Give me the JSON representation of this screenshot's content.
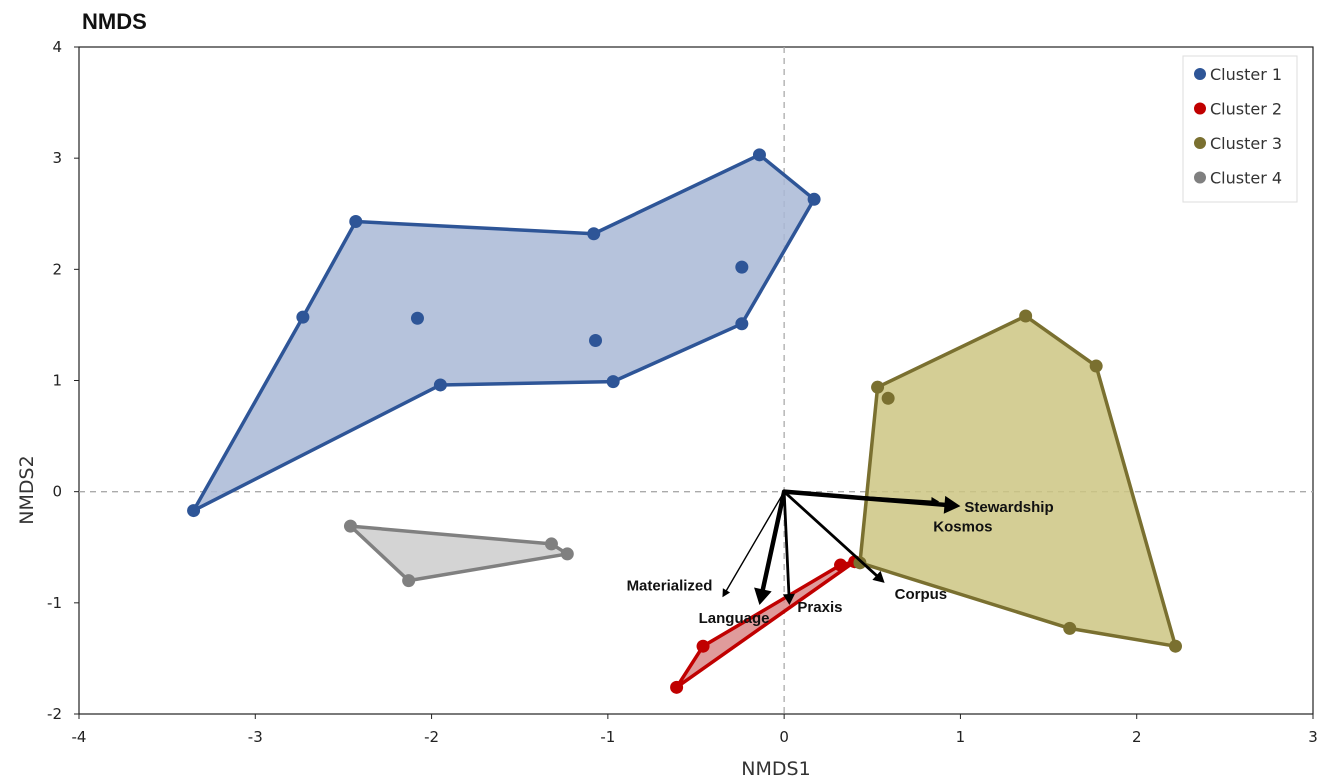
{
  "chart_data": {
    "type": "scatter",
    "title": "NMDS",
    "xlabel": "NMDS1",
    "ylabel": "NMDS2",
    "xlim": [
      -4,
      3
    ],
    "ylim": [
      -2,
      4
    ],
    "x_ticks": [
      "-4",
      "-3",
      "-2",
      "-1",
      "0",
      "1",
      "2",
      "3"
    ],
    "y_ticks": [
      "-2",
      "-1",
      "0",
      "1",
      "2",
      "3",
      "4"
    ],
    "reference_lines": {
      "x": 0,
      "y": 0,
      "style": "dashed"
    },
    "legend_position": "top-right",
    "series": [
      {
        "name": "Cluster 1",
        "color": "#2e5597",
        "fill": "#a9b9d6",
        "points": [
          [
            -3.35,
            -0.17
          ],
          [
            -2.73,
            1.57
          ],
          [
            -2.43,
            2.43
          ],
          [
            -2.08,
            1.56
          ],
          [
            -1.95,
            0.96
          ],
          [
            -1.08,
            2.32
          ],
          [
            -1.07,
            1.36
          ],
          [
            -0.97,
            0.99
          ],
          [
            -0.24,
            1.51
          ],
          [
            -0.24,
            2.02
          ],
          [
            -0.14,
            3.03
          ],
          [
            0.17,
            2.63
          ]
        ],
        "hull": [
          [
            -3.35,
            -0.17
          ],
          [
            -2.73,
            1.57
          ],
          [
            -2.43,
            2.43
          ],
          [
            -1.08,
            2.32
          ],
          [
            -0.14,
            3.03
          ],
          [
            0.17,
            2.63
          ],
          [
            -0.24,
            1.51
          ],
          [
            -0.97,
            0.99
          ],
          [
            -1.95,
            0.96
          ]
        ]
      },
      {
        "name": "Cluster 2",
        "color": "#c00000",
        "fill": "#d98a8a",
        "points": [
          [
            -0.61,
            -1.76
          ],
          [
            -0.46,
            -1.39
          ],
          [
            0.32,
            -0.66
          ],
          [
            0.4,
            -0.63
          ]
        ],
        "hull": [
          [
            -0.61,
            -1.76
          ],
          [
            -0.46,
            -1.39
          ],
          [
            0.32,
            -0.66
          ],
          [
            0.4,
            -0.63
          ]
        ]
      },
      {
        "name": "Cluster 3",
        "color": "#7a7030",
        "fill": "#ccc582",
        "points": [
          [
            0.43,
            -0.64
          ],
          [
            0.53,
            0.94
          ],
          [
            0.59,
            0.84
          ],
          [
            1.37,
            1.58
          ],
          [
            1.77,
            1.13
          ],
          [
            1.62,
            -1.23
          ],
          [
            2.22,
            -1.39
          ]
        ],
        "hull": [
          [
            0.43,
            -0.64
          ],
          [
            0.53,
            0.94
          ],
          [
            1.37,
            1.58
          ],
          [
            1.77,
            1.13
          ],
          [
            2.22,
            -1.39
          ],
          [
            1.62,
            -1.23
          ]
        ]
      },
      {
        "name": "Cluster 4",
        "color": "#808080",
        "fill": "#cccccc",
        "points": [
          [
            -2.46,
            -0.31
          ],
          [
            -2.13,
            -0.8
          ],
          [
            -1.32,
            -0.47
          ],
          [
            -1.23,
            -0.56
          ]
        ],
        "hull": [
          [
            -2.46,
            -0.31
          ],
          [
            -1.32,
            -0.47
          ],
          [
            -1.23,
            -0.56
          ],
          [
            -2.13,
            -0.8
          ]
        ]
      }
    ],
    "vectors": [
      {
        "name": "Stewardship",
        "x": 1.0,
        "y": -0.13,
        "weight": "heavy"
      },
      {
        "name": "Kosmos",
        "x": 0.88,
        "y": -0.09,
        "weight": "light"
      },
      {
        "name": "Materialized",
        "x": -0.35,
        "y": -0.95,
        "weight": "light"
      },
      {
        "name": "Language",
        "x": -0.14,
        "y": -1.02,
        "weight": "heavy"
      },
      {
        "name": "Praxis",
        "x": 0.03,
        "y": -1.02,
        "weight": "medium"
      },
      {
        "name": "Corpus",
        "x": 0.57,
        "y": -0.82,
        "weight": "medium"
      }
    ]
  }
}
